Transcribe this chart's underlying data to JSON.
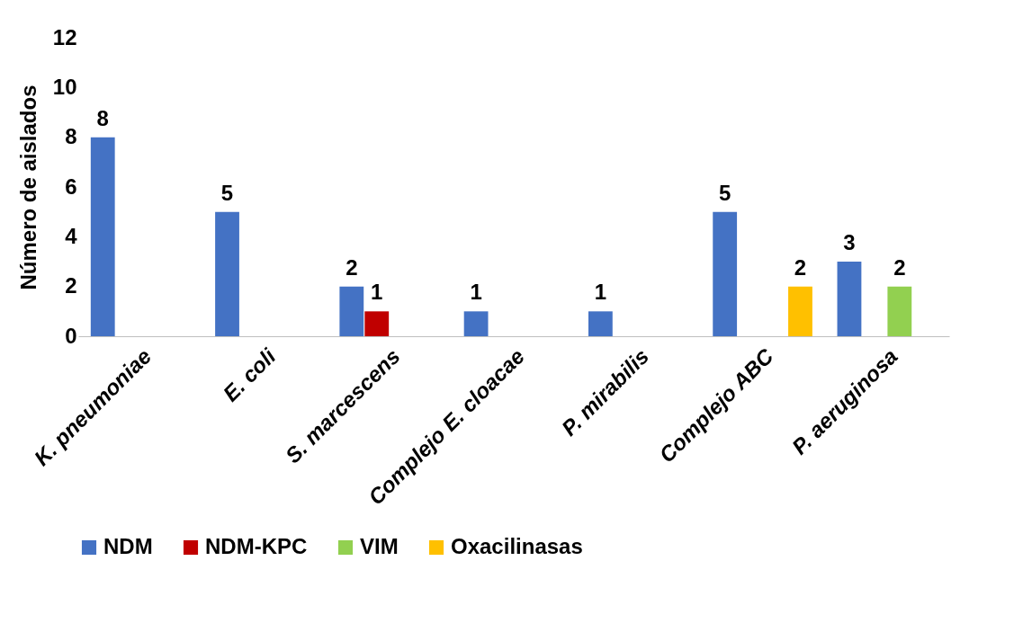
{
  "chart_data": {
    "type": "bar",
    "ylabel": "Número de aislados",
    "categories": [
      "K. pneumoniae",
      "E. coli",
      "S. marcescens",
      "Complejo E. cloacae",
      "P. mirabilis",
      "Complejo ABC",
      "P. aeruginosa"
    ],
    "series": [
      {
        "name": "NDM",
        "color": "#4472c4",
        "values": [
          8,
          5,
          2,
          1,
          1,
          5,
          3
        ]
      },
      {
        "name": "NDM-KPC",
        "color": "#c00000",
        "values": [
          null,
          null,
          1,
          null,
          null,
          null,
          null
        ]
      },
      {
        "name": "VIM",
        "color": "#92d050",
        "values": [
          null,
          null,
          null,
          null,
          null,
          null,
          2
        ]
      },
      {
        "name": "Oxacilinasas",
        "color": "#ffc000",
        "values": [
          null,
          null,
          null,
          null,
          null,
          2,
          null
        ]
      }
    ],
    "ylim": [
      0,
      12
    ],
    "yticks": [
      0,
      2,
      4,
      6,
      8,
      10,
      12
    ],
    "grid": false,
    "legend": "bottom",
    "data_labels": true
  }
}
